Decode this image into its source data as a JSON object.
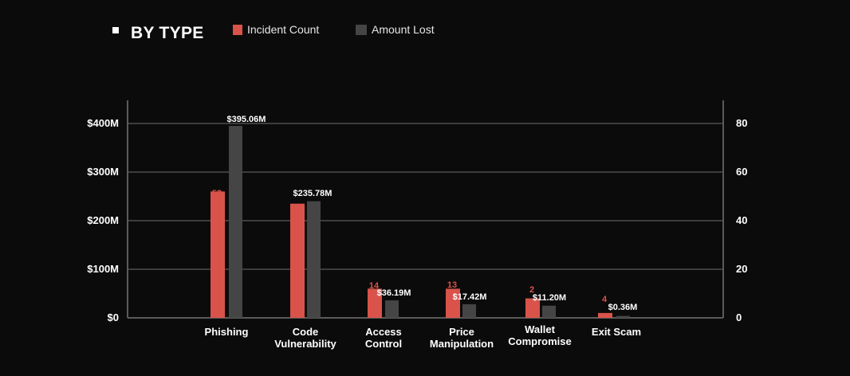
{
  "title": "BY TYPE",
  "legend": [
    {
      "label": "Incident Count",
      "color": "#d9534a",
      "icon": "square-swatch-icon"
    },
    {
      "label": "Amount Lost",
      "color": "#454545",
      "icon": "square-swatch-icon"
    }
  ],
  "colors": {
    "background": "#0b0b0b",
    "count": "#d9534a",
    "amount": "#454545",
    "grid": "#3d3d3d",
    "axis": "#5a5a5a",
    "text": "#ffffff"
  },
  "chart_data": {
    "type": "bar",
    "title": "BY TYPE",
    "categories": [
      [
        "Phishing"
      ],
      [
        "Code",
        "Vulnerability"
      ],
      [
        "Access",
        "Control"
      ],
      [
        "Price",
        "Manipulation"
      ],
      [
        "Wallet",
        "Compromise"
      ],
      [
        "Exit Scam"
      ]
    ],
    "series": [
      {
        "name": "Incident Count",
        "axis": "right",
        "values": [
          52,
          47,
          14,
          13,
          2,
          4
        ],
        "bar_levels": [
          52,
          47,
          12,
          12,
          8,
          2
        ],
        "labels": [
          "52",
          "47",
          "14",
          "13",
          "2",
          "4"
        ]
      },
      {
        "name": "Amount Lost",
        "axis": "left",
        "values": [
          395.06,
          235.78,
          36.19,
          17.42,
          11.2,
          0.36
        ],
        "bar_levels": [
          395,
          240,
          36,
          28,
          25,
          4
        ],
        "labels": [
          "$395.06M",
          "$235.78M",
          "$36.19M",
          "$17.42M",
          "$11.20M",
          "$0.36M"
        ]
      }
    ],
    "y_left": {
      "ticks": [
        0,
        100,
        200,
        300,
        400
      ],
      "tick_labels": [
        "$0",
        "$100M",
        "$200M",
        "$300M",
        "$400M"
      ],
      "range": [
        0,
        440
      ]
    },
    "y_right": {
      "ticks": [
        0,
        20,
        40,
        60,
        80
      ],
      "tick_labels": [
        "0",
        "20",
        "40",
        "60",
        "80"
      ],
      "range": [
        0,
        88
      ]
    },
    "grid": true,
    "legend_position": "top"
  }
}
